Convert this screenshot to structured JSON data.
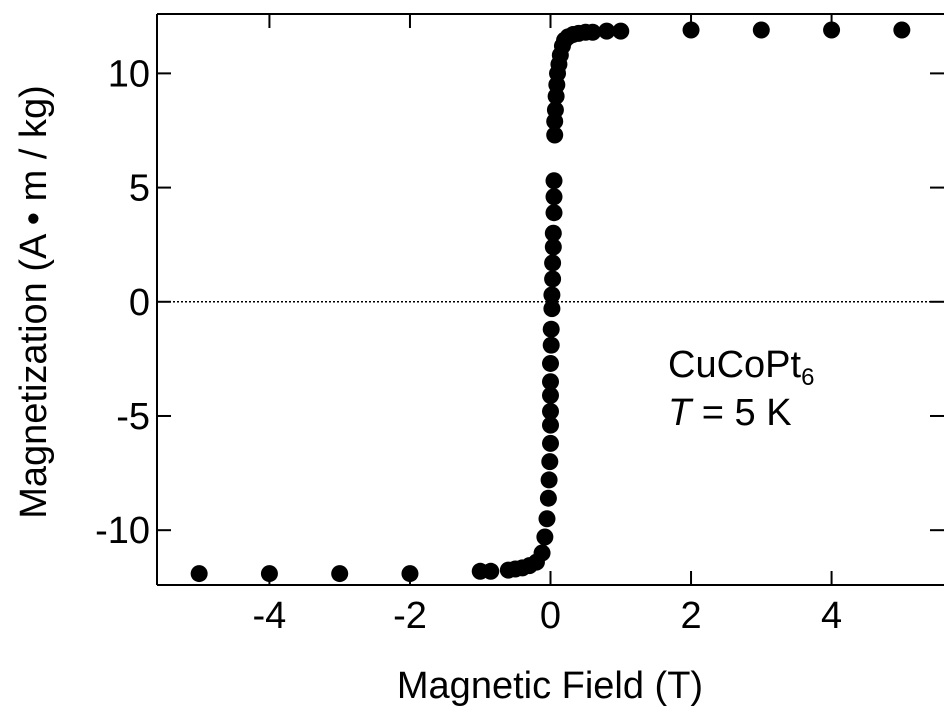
{
  "chart_data": {
    "type": "scatter",
    "xlabel": "Magnetic Field (T)",
    "ylabel": "Magnetization (A • m / kg)",
    "xlim": [
      -5.6,
      5.6
    ],
    "ylim": [
      -12.4,
      12.6
    ],
    "x_ticks": [
      -4,
      -2,
      0,
      2,
      4
    ],
    "x_tick_labels": [
      "-4",
      "-2",
      "0",
      "2",
      "4"
    ],
    "y_ticks": [
      -10,
      -5,
      0,
      5,
      10
    ],
    "y_tick_labels": [
      "-10",
      "-5",
      "0",
      "5",
      "10"
    ],
    "zero_line": true,
    "grid": false,
    "annotation": {
      "formula_main": "CuCoPt",
      "formula_sub": "6",
      "temp_symbol": "T",
      "temp_rest": " = 5 K"
    },
    "series": [
      {
        "marker_color": "#000000",
        "points": [
          [
            -5.0,
            -11.9
          ],
          [
            -4.0,
            -11.9
          ],
          [
            -3.0,
            -11.9
          ],
          [
            -2.0,
            -11.9
          ],
          [
            -1.0,
            -11.8
          ],
          [
            -0.85,
            -11.8
          ],
          [
            -0.6,
            -11.75
          ],
          [
            -0.5,
            -11.7
          ],
          [
            -0.4,
            -11.65
          ],
          [
            -0.3,
            -11.55
          ],
          [
            -0.2,
            -11.4
          ],
          [
            -0.12,
            -11.0
          ],
          [
            -0.08,
            -10.3
          ],
          [
            -0.05,
            -9.5
          ],
          [
            -0.03,
            -8.6
          ],
          [
            -0.02,
            -7.8
          ],
          [
            -0.01,
            -7.0
          ],
          [
            0.0,
            -6.2
          ],
          [
            0.0,
            -5.4
          ],
          [
            0.0,
            -4.8
          ],
          [
            0.0,
            -4.1
          ],
          [
            0.0,
            -3.5
          ],
          [
            0.0,
            -2.7
          ],
          [
            0.01,
            -1.9
          ],
          [
            0.01,
            -1.2
          ],
          [
            0.02,
            -0.3
          ],
          [
            0.02,
            0.3
          ],
          [
            0.03,
            1.0
          ],
          [
            0.03,
            1.7
          ],
          [
            0.04,
            2.4
          ],
          [
            0.04,
            3.0
          ],
          [
            0.05,
            3.9
          ],
          [
            0.05,
            4.6
          ],
          [
            0.05,
            5.3
          ],
          [
            0.06,
            7.3
          ],
          [
            0.06,
            7.9
          ],
          [
            0.07,
            8.4
          ],
          [
            0.08,
            9.0
          ],
          [
            0.09,
            9.5
          ],
          [
            0.1,
            10.0
          ],
          [
            0.12,
            10.4
          ],
          [
            0.14,
            10.8
          ],
          [
            0.17,
            11.2
          ],
          [
            0.2,
            11.45
          ],
          [
            0.25,
            11.6
          ],
          [
            0.32,
            11.7
          ],
          [
            0.4,
            11.75
          ],
          [
            0.5,
            11.8
          ],
          [
            0.6,
            11.8
          ],
          [
            0.8,
            11.85
          ],
          [
            1.0,
            11.85
          ],
          [
            2.0,
            11.9
          ],
          [
            3.0,
            11.9
          ],
          [
            4.0,
            11.9
          ],
          [
            5.0,
            11.9
          ]
        ]
      }
    ]
  }
}
